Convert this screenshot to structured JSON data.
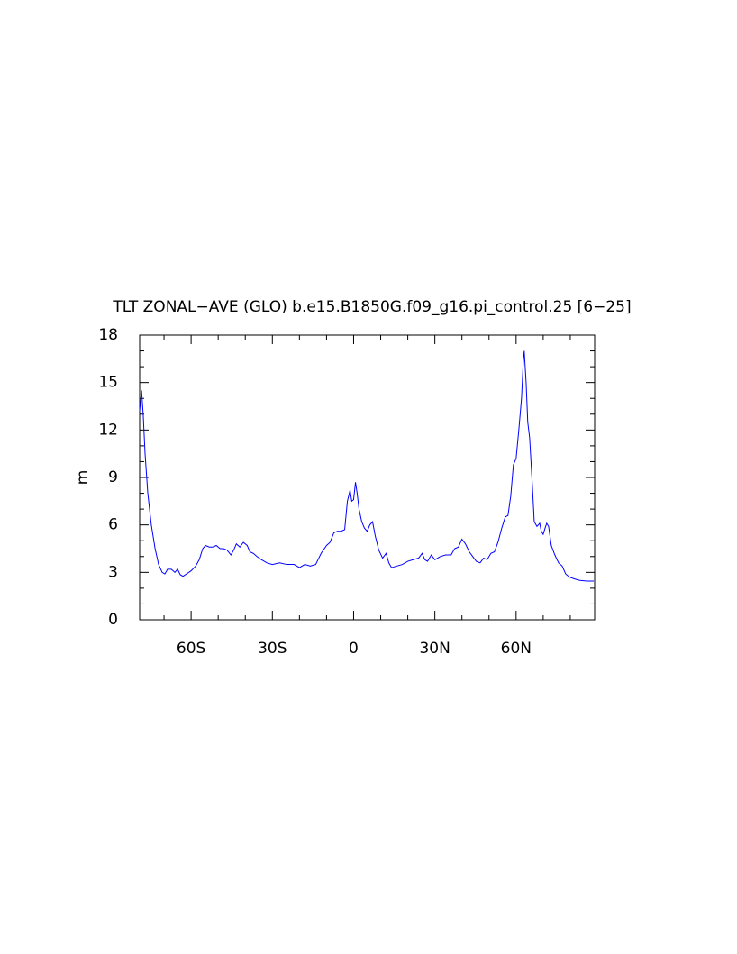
{
  "chart_data": {
    "type": "line",
    "title": "TLT ZONAL−AVE (GLO) b.e15.B1850G.f09_g16.pi_control.25 [6−25]",
    "ylabel": "m",
    "xlim": [
      -79,
      89
    ],
    "ylim": [
      0,
      18
    ],
    "xticks": [
      {
        "value": -60,
        "label": "60S"
      },
      {
        "value": -30,
        "label": "30S"
      },
      0,
      {
        "value": 30,
        "label": "30N"
      },
      {
        "value": 60,
        "label": "60N"
      }
    ],
    "yticks": [
      0,
      3,
      6,
      9,
      12,
      15,
      18
    ],
    "xminorticks": [
      -70,
      -50,
      -40,
      -20,
      -10,
      10,
      20,
      40,
      50,
      70,
      80
    ],
    "yminorticks": [
      1,
      2,
      4,
      5,
      7,
      8,
      10,
      11,
      13,
      14,
      16,
      17
    ],
    "grid": false,
    "series": [
      {
        "color": "#0000ff",
        "x": [
          -79,
          -78.3,
          -77.7,
          -77,
          -76,
          -74.7,
          -73.3,
          -72,
          -70.7,
          -69.7,
          -68.7,
          -67.3,
          -66,
          -65,
          -64,
          -63,
          -61.7,
          -60,
          -58.3,
          -57,
          -55.7,
          -54.7,
          -53.3,
          -52,
          -50.7,
          -49.3,
          -48,
          -46.7,
          -45.3,
          -44.3,
          -43.3,
          -42,
          -40.7,
          -39.3,
          -38.3,
          -37,
          -35.7,
          -34,
          -32,
          -30,
          -27.3,
          -24.7,
          -22,
          -20,
          -18,
          -16,
          -14,
          -12,
          -10,
          -8.7,
          -7.3,
          -6,
          -4.7,
          -3.3,
          -2.3,
          -1.3,
          -0.7,
          0,
          0.7,
          1.3,
          2,
          3,
          4,
          5,
          6,
          7,
          8,
          9.3,
          10.7,
          12,
          13,
          14,
          16,
          18,
          20,
          22,
          24,
          25.3,
          26.3,
          27.3,
          28.7,
          30,
          32,
          34,
          36,
          37.3,
          38.7,
          40,
          41.3,
          42.7,
          44,
          45.3,
          46.7,
          48,
          49.3,
          50.7,
          52,
          53.3,
          54.7,
          56,
          57,
          58,
          59,
          60,
          61,
          62,
          62.7,
          63,
          63.7,
          64.3,
          65,
          66,
          66.7,
          67.7,
          68.7,
          69.3,
          70,
          70.7,
          71.3,
          72,
          73,
          74.3,
          75.7,
          77,
          78.3,
          79.7,
          81.3,
          83.3,
          86,
          88.7
        ],
        "values": [
          13.2,
          14.5,
          13.0,
          10.5,
          8,
          6,
          4.5,
          3.5,
          3.0,
          2.9,
          3.2,
          3.2,
          3.0,
          3.2,
          2.85,
          2.75,
          2.9,
          3.1,
          3.4,
          3.8,
          4.5,
          4.7,
          4.6,
          4.6,
          4.7,
          4.5,
          4.5,
          4.4,
          4.1,
          4.4,
          4.8,
          4.6,
          4.9,
          4.7,
          4.3,
          4.2,
          4.0,
          3.8,
          3.6,
          3.5,
          3.6,
          3.5,
          3.5,
          3.3,
          3.5,
          3.4,
          3.5,
          4.2,
          4.7,
          4.9,
          5.5,
          5.6,
          5.6,
          5.7,
          7.5,
          8.2,
          7.5,
          7.6,
          8.7,
          8.0,
          7.0,
          6.2,
          5.8,
          5.6,
          6.0,
          6.2,
          5.3,
          4.4,
          3.9,
          4.2,
          3.6,
          3.3,
          3.4,
          3.5,
          3.7,
          3.8,
          3.9,
          4.2,
          3.8,
          3.7,
          4.1,
          3.8,
          4.0,
          4.1,
          4.1,
          4.5,
          4.6,
          5.1,
          4.8,
          4.3,
          4.0,
          3.7,
          3.6,
          3.9,
          3.8,
          4.2,
          4.3,
          4.9,
          5.8,
          6.5,
          6.6,
          7.8,
          9.8,
          10.2,
          12.0,
          14.0,
          16.5,
          17.0,
          15.0,
          12.5,
          11.5,
          8.5,
          6.2,
          5.9,
          6.1,
          5.6,
          5.4,
          5.8,
          6.1,
          5.9,
          4.7,
          4.1,
          3.6,
          3.4,
          2.9,
          2.7,
          2.6,
          2.5,
          2.45,
          2.45
        ]
      }
    ]
  }
}
